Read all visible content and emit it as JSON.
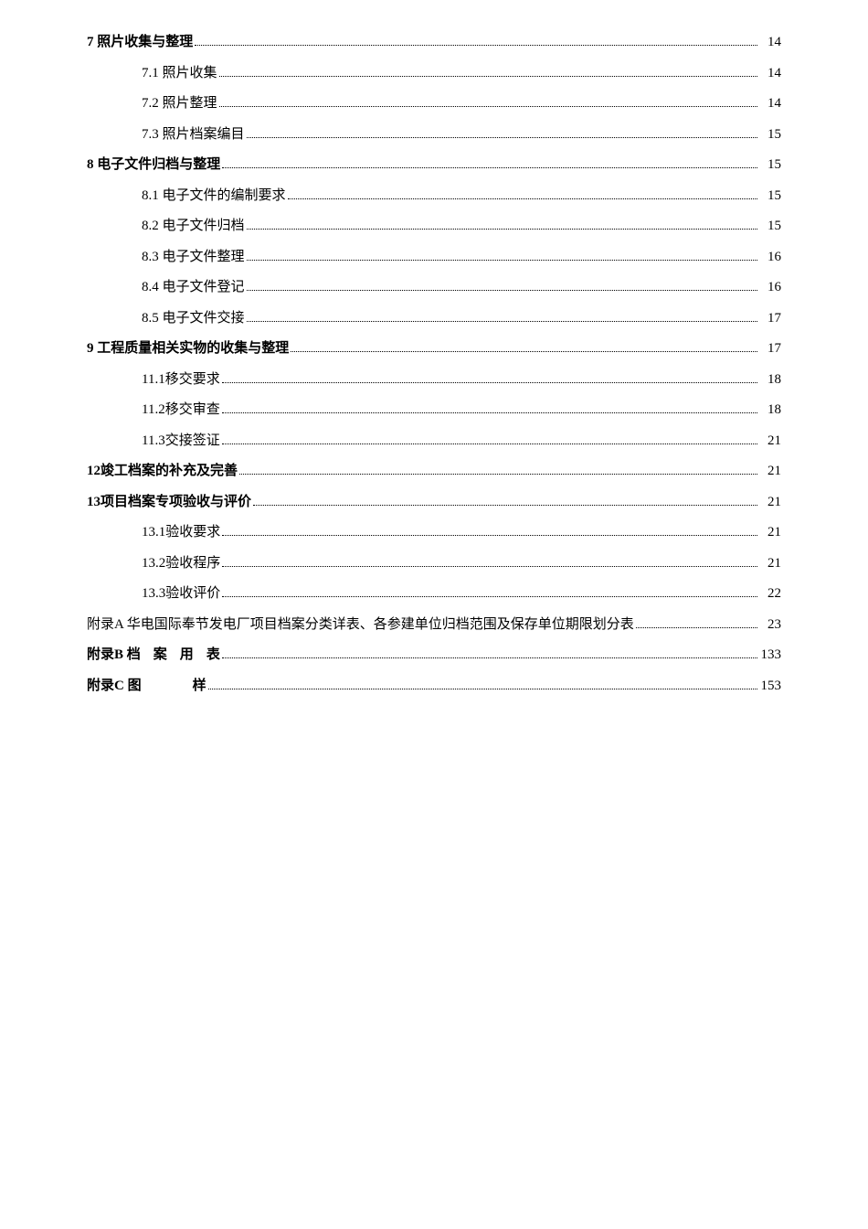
{
  "toc": [
    {
      "label": "7 照片收集与整理",
      "page": "14",
      "bold": true,
      "indent": 0
    },
    {
      "label": "7.1 照片收集",
      "page": "14",
      "bold": false,
      "indent": 1
    },
    {
      "label": "7.2 照片整理",
      "page": "14",
      "bold": false,
      "indent": 1
    },
    {
      "label": "7.3 照片档案编目",
      "page": "15",
      "bold": false,
      "indent": 1
    },
    {
      "label": "8 电子文件归档与整理",
      "page": "15",
      "bold": true,
      "indent": 0
    },
    {
      "label": "8.1 电子文件的编制要求",
      "page": "15",
      "bold": false,
      "indent": 1
    },
    {
      "label": "8.2 电子文件归档",
      "page": "15",
      "bold": false,
      "indent": 1
    },
    {
      "label": "8.3 电子文件整理",
      "page": "16",
      "bold": false,
      "indent": 1
    },
    {
      "label": "8.4 电子文件登记",
      "page": "16",
      "bold": false,
      "indent": 1
    },
    {
      "label": "8.5 电子文件交接",
      "page": "17",
      "bold": false,
      "indent": 1
    },
    {
      "label": "9 工程质量相关实物的收集与整理",
      "page": "17",
      "bold": true,
      "indent": 0
    },
    {
      "label": "11.1移交要求",
      "page": "18",
      "bold": false,
      "indent": 1
    },
    {
      "label": "11.2移交审查",
      "page": "18",
      "bold": false,
      "indent": 1
    },
    {
      "label": "11.3交接签证",
      "page": "21",
      "bold": false,
      "indent": 1
    },
    {
      "label": "12竣工档案的补充及完善",
      "page": "21",
      "bold": true,
      "indent": 0
    },
    {
      "label": "13项目档案专项验收与评价",
      "page": "21",
      "bold": true,
      "indent": 0
    },
    {
      "label": "13.1验收要求",
      "page": "21",
      "bold": false,
      "indent": 1
    },
    {
      "label": "13.2验收程序",
      "page": "21",
      "bold": false,
      "indent": 1
    },
    {
      "label": "13.3验收评价",
      "page": "22",
      "bold": false,
      "indent": 1
    },
    {
      "label": "附录A 华电国际奉节发电厂项目档案分类详表、各参建单位归档范围及保存单位期限划分表",
      "page": "23",
      "bold": false,
      "indent": 0
    },
    {
      "label_prefix": "附录B ",
      "label_spaced": "档案用表",
      "page": "133",
      "bold": true,
      "indent": 0,
      "spaced": true
    },
    {
      "label_prefix": "附录C ",
      "label_spaced": "图样",
      "page": "153",
      "bold": true,
      "indent": 0,
      "spaced": true,
      "gap": true
    }
  ]
}
